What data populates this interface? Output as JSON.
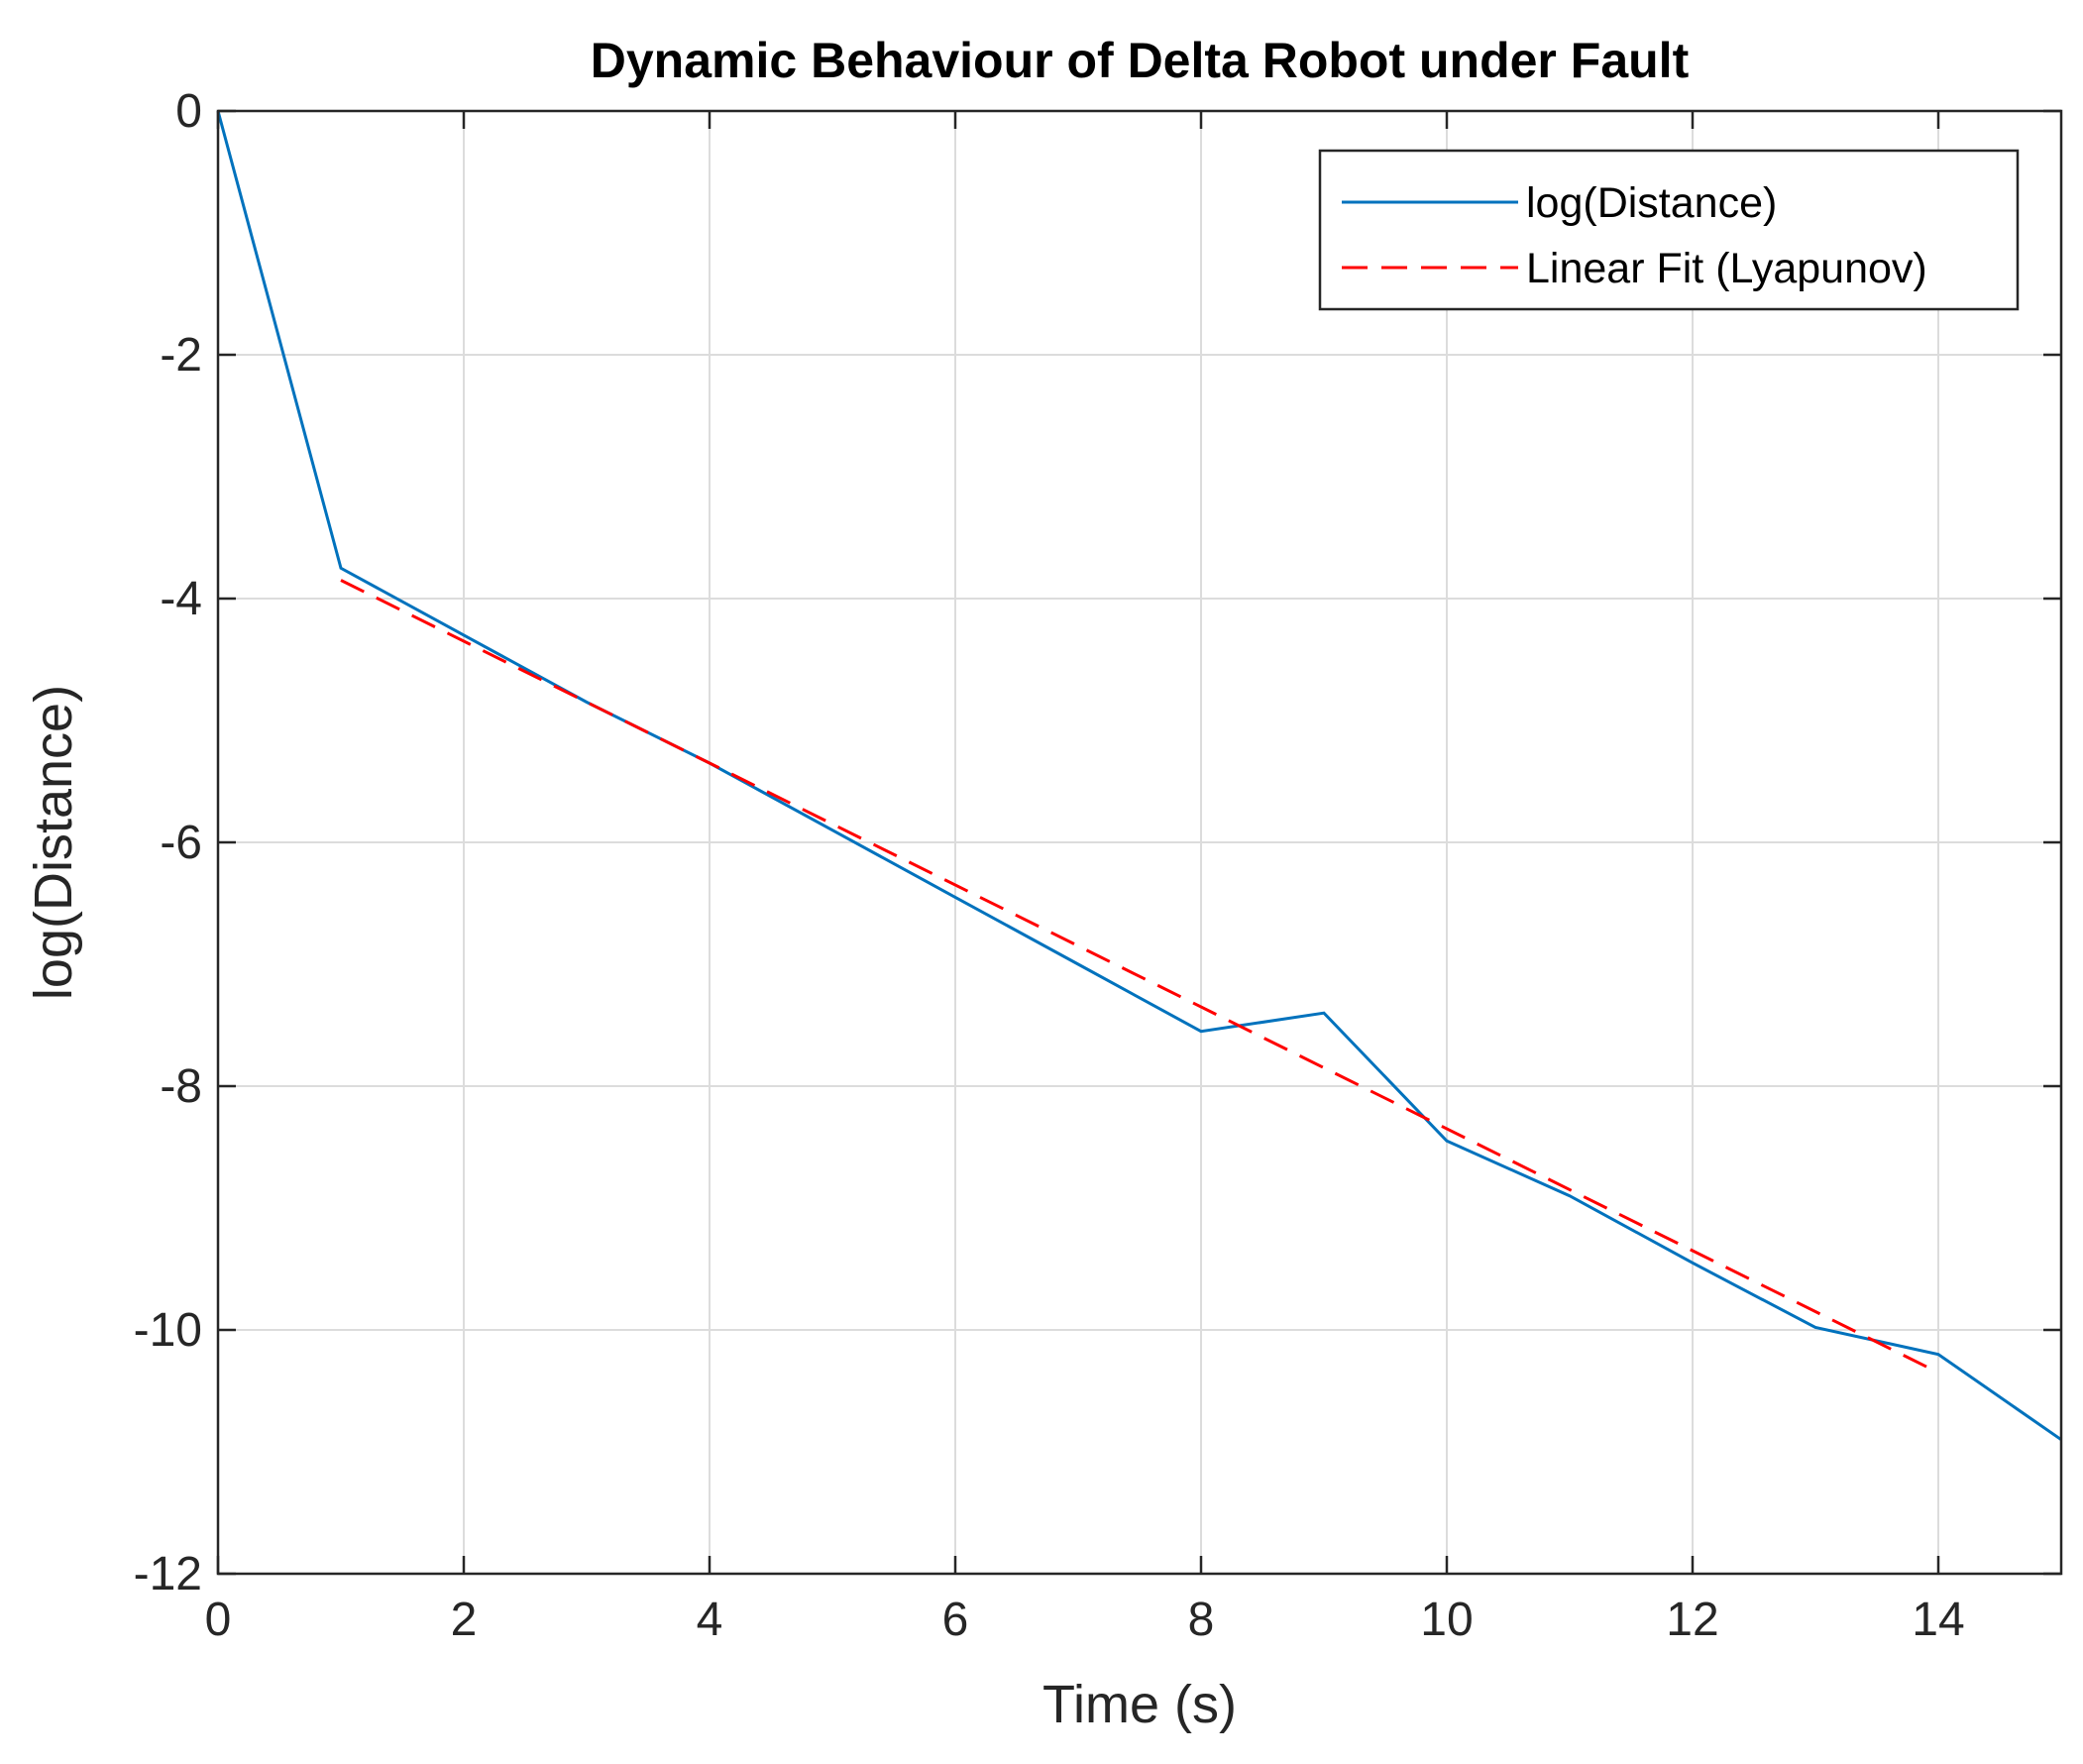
{
  "chart_data": {
    "type": "line",
    "title": "Dynamic Behaviour of Delta Robot under Fault",
    "xlabel": "Time (s)",
    "ylabel": "log(Distance)",
    "xlim": [
      0,
      15
    ],
    "ylim": [
      -12,
      0
    ],
    "xticks": [
      0,
      2,
      4,
      6,
      8,
      10,
      12,
      14
    ],
    "yticks": [
      0,
      -2,
      -4,
      -6,
      -8,
      -10,
      -12
    ],
    "xtick_labels": [
      "0",
      "2",
      "4",
      "6",
      "8",
      "10",
      "12",
      "14"
    ],
    "ytick_labels": [
      "0",
      "-2",
      "-4",
      "-6",
      "-8",
      "-10",
      "-12"
    ],
    "grid": true,
    "legend_position": "top-right",
    "series": [
      {
        "name": "log(Distance)",
        "style": "solid",
        "color": "#0072BD",
        "x": [
          0,
          1,
          2,
          3,
          4,
          5,
          6,
          7,
          8,
          9,
          10,
          11,
          12,
          13,
          14,
          15
        ],
        "y": [
          0,
          -3.75,
          -4.3,
          -4.85,
          -5.35,
          -5.9,
          -6.45,
          -7.0,
          -7.55,
          -7.4,
          -8.45,
          -8.9,
          -9.45,
          -9.98,
          -10.2,
          -10.9
        ]
      },
      {
        "name": "Linear Fit (Lyapunov)",
        "style": "dashed",
        "color": "#FF0000",
        "x": [
          1,
          14
        ],
        "y": [
          -3.85,
          -10.35
        ]
      }
    ]
  }
}
